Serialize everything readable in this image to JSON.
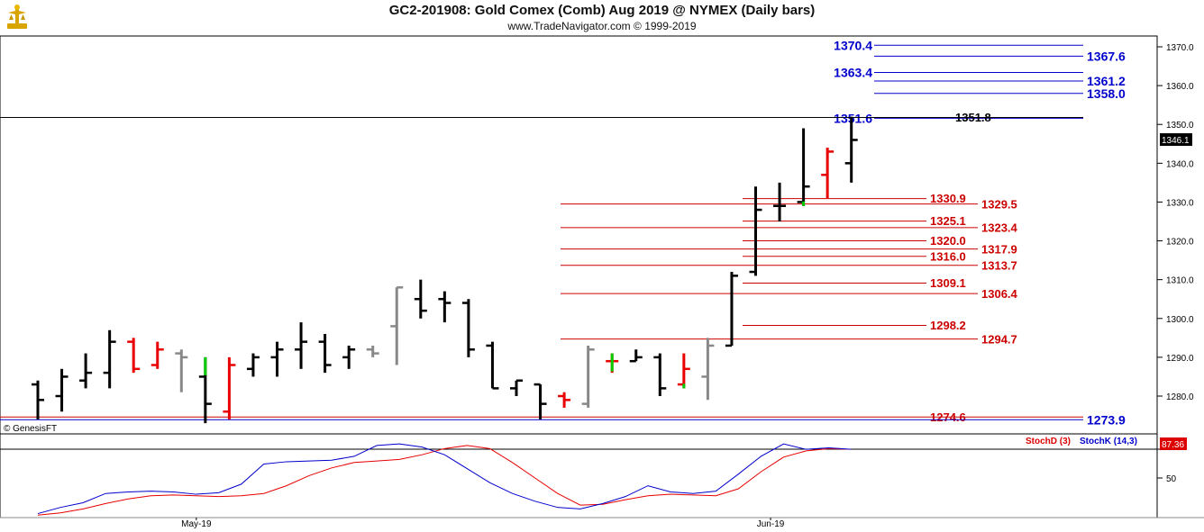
{
  "header": {
    "title": "GC2-201908:  Gold Comex (Comb) Aug 2019 @ NYMEX  (Daily bars)",
    "subtitle": "www.TradeNavigator.com © 1999-2019",
    "watermark": "© GenesisFT"
  },
  "colors": {
    "bar_black": "#000000",
    "bar_red": "#e80000",
    "bar_gray": "#888888",
    "bar_green": "#00cc00",
    "level_blue": "#0000cc",
    "level_red": "#cc0000",
    "stoch_d": "#dd0000",
    "stoch_k": "#0000cc"
  },
  "chart_data": [
    {
      "type": "ohlc",
      "ylim": [
        1273,
        1374
      ],
      "y_ticks": [
        "1370.0",
        "1360.0",
        "1350.0",
        "1340.0",
        "1330.0",
        "1320.0",
        "1310.0",
        "1300.0",
        "1290.0",
        "1280.0"
      ],
      "x_tick_labels": [
        {
          "label": "May-19",
          "bar_index": 7
        },
        {
          "label": "Jun-19",
          "bar_index": 31
        }
      ],
      "last_price": "1346.1",
      "bars": [
        {
          "o": 1283,
          "h": 1284,
          "l": 1274,
          "c": 1279,
          "color": "black"
        },
        {
          "o": 1280,
          "h": 1287,
          "l": 1276,
          "c": 1285,
          "color": "black"
        },
        {
          "o": 1284,
          "h": 1291,
          "l": 1282,
          "c": 1286,
          "color": "black"
        },
        {
          "o": 1286,
          "h": 1297,
          "l": 1282,
          "c": 1294,
          "color": "black"
        },
        {
          "o": 1294,
          "h": 1295,
          "l": 1286,
          "c": 1287,
          "color": "red"
        },
        {
          "o": 1288,
          "h": 1294,
          "l": 1287,
          "c": 1292,
          "color": "red"
        },
        {
          "o": 1291,
          "h": 1292,
          "l": 1281,
          "c": 1290,
          "color": "gray"
        },
        {
          "o": 1285,
          "h": 1290,
          "l": 1273,
          "c": 1278,
          "color": "black",
          "high_tint": "green"
        },
        {
          "o": 1276,
          "h": 1290,
          "l": 1274,
          "c": 1288,
          "color": "red"
        },
        {
          "o": 1287,
          "h": 1291,
          "l": 1285,
          "c": 1290,
          "color": "black"
        },
        {
          "o": 1290,
          "h": 1294,
          "l": 1285,
          "c": 1292,
          "color": "black"
        },
        {
          "o": 1292,
          "h": 1299,
          "l": 1287,
          "c": 1294,
          "color": "black"
        },
        {
          "o": 1294,
          "h": 1296,
          "l": 1286,
          "c": 1288,
          "color": "black"
        },
        {
          "o": 1290,
          "h": 1293,
          "l": 1287,
          "c": 1292,
          "color": "black"
        },
        {
          "o": 1292,
          "h": 1293,
          "l": 1290,
          "c": 1291,
          "color": "gray"
        },
        {
          "o": 1298,
          "h": 1308,
          "l": 1288,
          "c": 1308,
          "color": "gray"
        },
        {
          "o": 1305,
          "h": 1310,
          "l": 1300,
          "c": 1302,
          "color": "black"
        },
        {
          "o": 1305,
          "h": 1307,
          "l": 1299,
          "c": 1304,
          "color": "black"
        },
        {
          "o": 1304,
          "h": 1305,
          "l": 1290,
          "c": 1292,
          "color": "black"
        },
        {
          "o": 1293,
          "h": 1294,
          "l": 1282,
          "c": 1282,
          "color": "black"
        },
        {
          "o": 1282,
          "h": 1284,
          "l": 1280,
          "c": 1284,
          "color": "black"
        },
        {
          "o": 1283,
          "h": 1283,
          "l": 1274,
          "c": 1278,
          "color": "black"
        },
        {
          "o": 1280,
          "h": 1281,
          "l": 1277,
          "c": 1279,
          "color": "red"
        },
        {
          "o": 1278,
          "h": 1293,
          "l": 1277,
          "c": 1292,
          "color": "gray"
        },
        {
          "o": 1289,
          "h": 1291,
          "l": 1286,
          "c": 1289,
          "color": "red",
          "high_tint": "green"
        },
        {
          "o": 1289,
          "h": 1292,
          "l": 1289,
          "c": 1290,
          "color": "black"
        },
        {
          "o": 1290,
          "h": 1291,
          "l": 1280,
          "c": 1282,
          "color": "black"
        },
        {
          "o": 1283,
          "h": 1291,
          "l": 1282,
          "c": 1287,
          "color": "red",
          "low_tint": "green"
        },
        {
          "o": 1285,
          "h": 1295,
          "l": 1279,
          "c": 1293,
          "color": "gray"
        },
        {
          "o": 1293,
          "h": 1312,
          "l": 1293,
          "c": 1311,
          "color": "black"
        },
        {
          "o": 1312,
          "h": 1334,
          "l": 1311,
          "c": 1328,
          "color": "black"
        },
        {
          "o": 1329,
          "h": 1335,
          "l": 1325,
          "c": 1329,
          "color": "black"
        },
        {
          "o": 1330,
          "h": 1349,
          "l": 1329,
          "c": 1334,
          "color": "black",
          "low_tint": "green"
        },
        {
          "o": 1337,
          "h": 1344,
          "l": 1331,
          "c": 1343,
          "color": "red"
        },
        {
          "o": 1340,
          "h": 1352,
          "l": 1335,
          "c": 1346,
          "color": "black"
        }
      ],
      "levels": [
        {
          "value": 1370.4,
          "label": "1370.4",
          "color": "blue",
          "label_side": "left"
        },
        {
          "value": 1367.6,
          "label": "1367.6",
          "color": "blue",
          "label_side": "right"
        },
        {
          "value": 1363.4,
          "label": "1363.4",
          "color": "blue",
          "label_side": "left"
        },
        {
          "value": 1361.2,
          "label": "1361.2",
          "color": "blue",
          "label_side": "right"
        },
        {
          "value": 1358.0,
          "label": "1358.0",
          "color": "blue",
          "label_side": "right"
        },
        {
          "value": 1351.6,
          "label": "1351.6",
          "color": "blue",
          "label_side": "left"
        },
        {
          "value": 1351.8,
          "label": "1351.8",
          "color": "black",
          "label_side": "mid"
        },
        {
          "value": 1330.9,
          "label": "1330.9",
          "color": "red",
          "label_side": "mid"
        },
        {
          "value": 1329.5,
          "label": "1329.5",
          "color": "red",
          "label_side": "right"
        },
        {
          "value": 1325.1,
          "label": "1325.1",
          "color": "red",
          "label_side": "mid"
        },
        {
          "value": 1323.4,
          "label": "1323.4",
          "color": "red",
          "label_side": "right"
        },
        {
          "value": 1320.0,
          "label": "1320.0",
          "color": "red",
          "label_side": "mid"
        },
        {
          "value": 1317.9,
          "label": "1317.9",
          "color": "red",
          "label_side": "right"
        },
        {
          "value": 1316.0,
          "label": "1316.0",
          "color": "red",
          "label_side": "mid"
        },
        {
          "value": 1313.7,
          "label": "1313.7",
          "color": "red",
          "label_side": "right"
        },
        {
          "value": 1309.1,
          "label": "1309.1",
          "color": "red",
          "label_side": "mid"
        },
        {
          "value": 1306.4,
          "label": "1306.4",
          "color": "red",
          "label_side": "right"
        },
        {
          "value": 1298.2,
          "label": "1298.2",
          "color": "red",
          "label_side": "mid"
        },
        {
          "value": 1294.7,
          "label": "1294.7",
          "color": "red",
          "label_side": "right"
        },
        {
          "value": 1274.6,
          "label": "1274.6",
          "color": "red",
          "label_side": "mid"
        },
        {
          "value": 1273.9,
          "label": "1273.9",
          "color": "blue",
          "label_side": "right"
        }
      ]
    },
    {
      "type": "line",
      "indicator": "Stochastic",
      "ylim": [
        0,
        100
      ],
      "y_ticks": [
        "50"
      ],
      "last_value": "87.36",
      "series": [
        {
          "name": "StochD (3)",
          "color": "red",
          "values": [
            2,
            5,
            10,
            17,
            23,
            27,
            28,
            27,
            26,
            27,
            30,
            40,
            53,
            63,
            70,
            72,
            74,
            80,
            88,
            92,
            88,
            70,
            50,
            30,
            15,
            16,
            22,
            27,
            29,
            28,
            27,
            36,
            58,
            77,
            85,
            88,
            87
          ]
        },
        {
          "name": "StochK (14,3)",
          "color": "blue",
          "values": [
            4,
            12,
            18,
            30,
            32,
            33,
            32,
            29,
            31,
            42,
            68,
            71,
            72,
            73,
            78,
            92,
            94,
            90,
            80,
            62,
            44,
            30,
            20,
            12,
            10,
            17,
            26,
            40,
            32,
            30,
            33,
            55,
            78,
            94,
            87,
            89,
            87
          ]
        }
      ]
    }
  ]
}
